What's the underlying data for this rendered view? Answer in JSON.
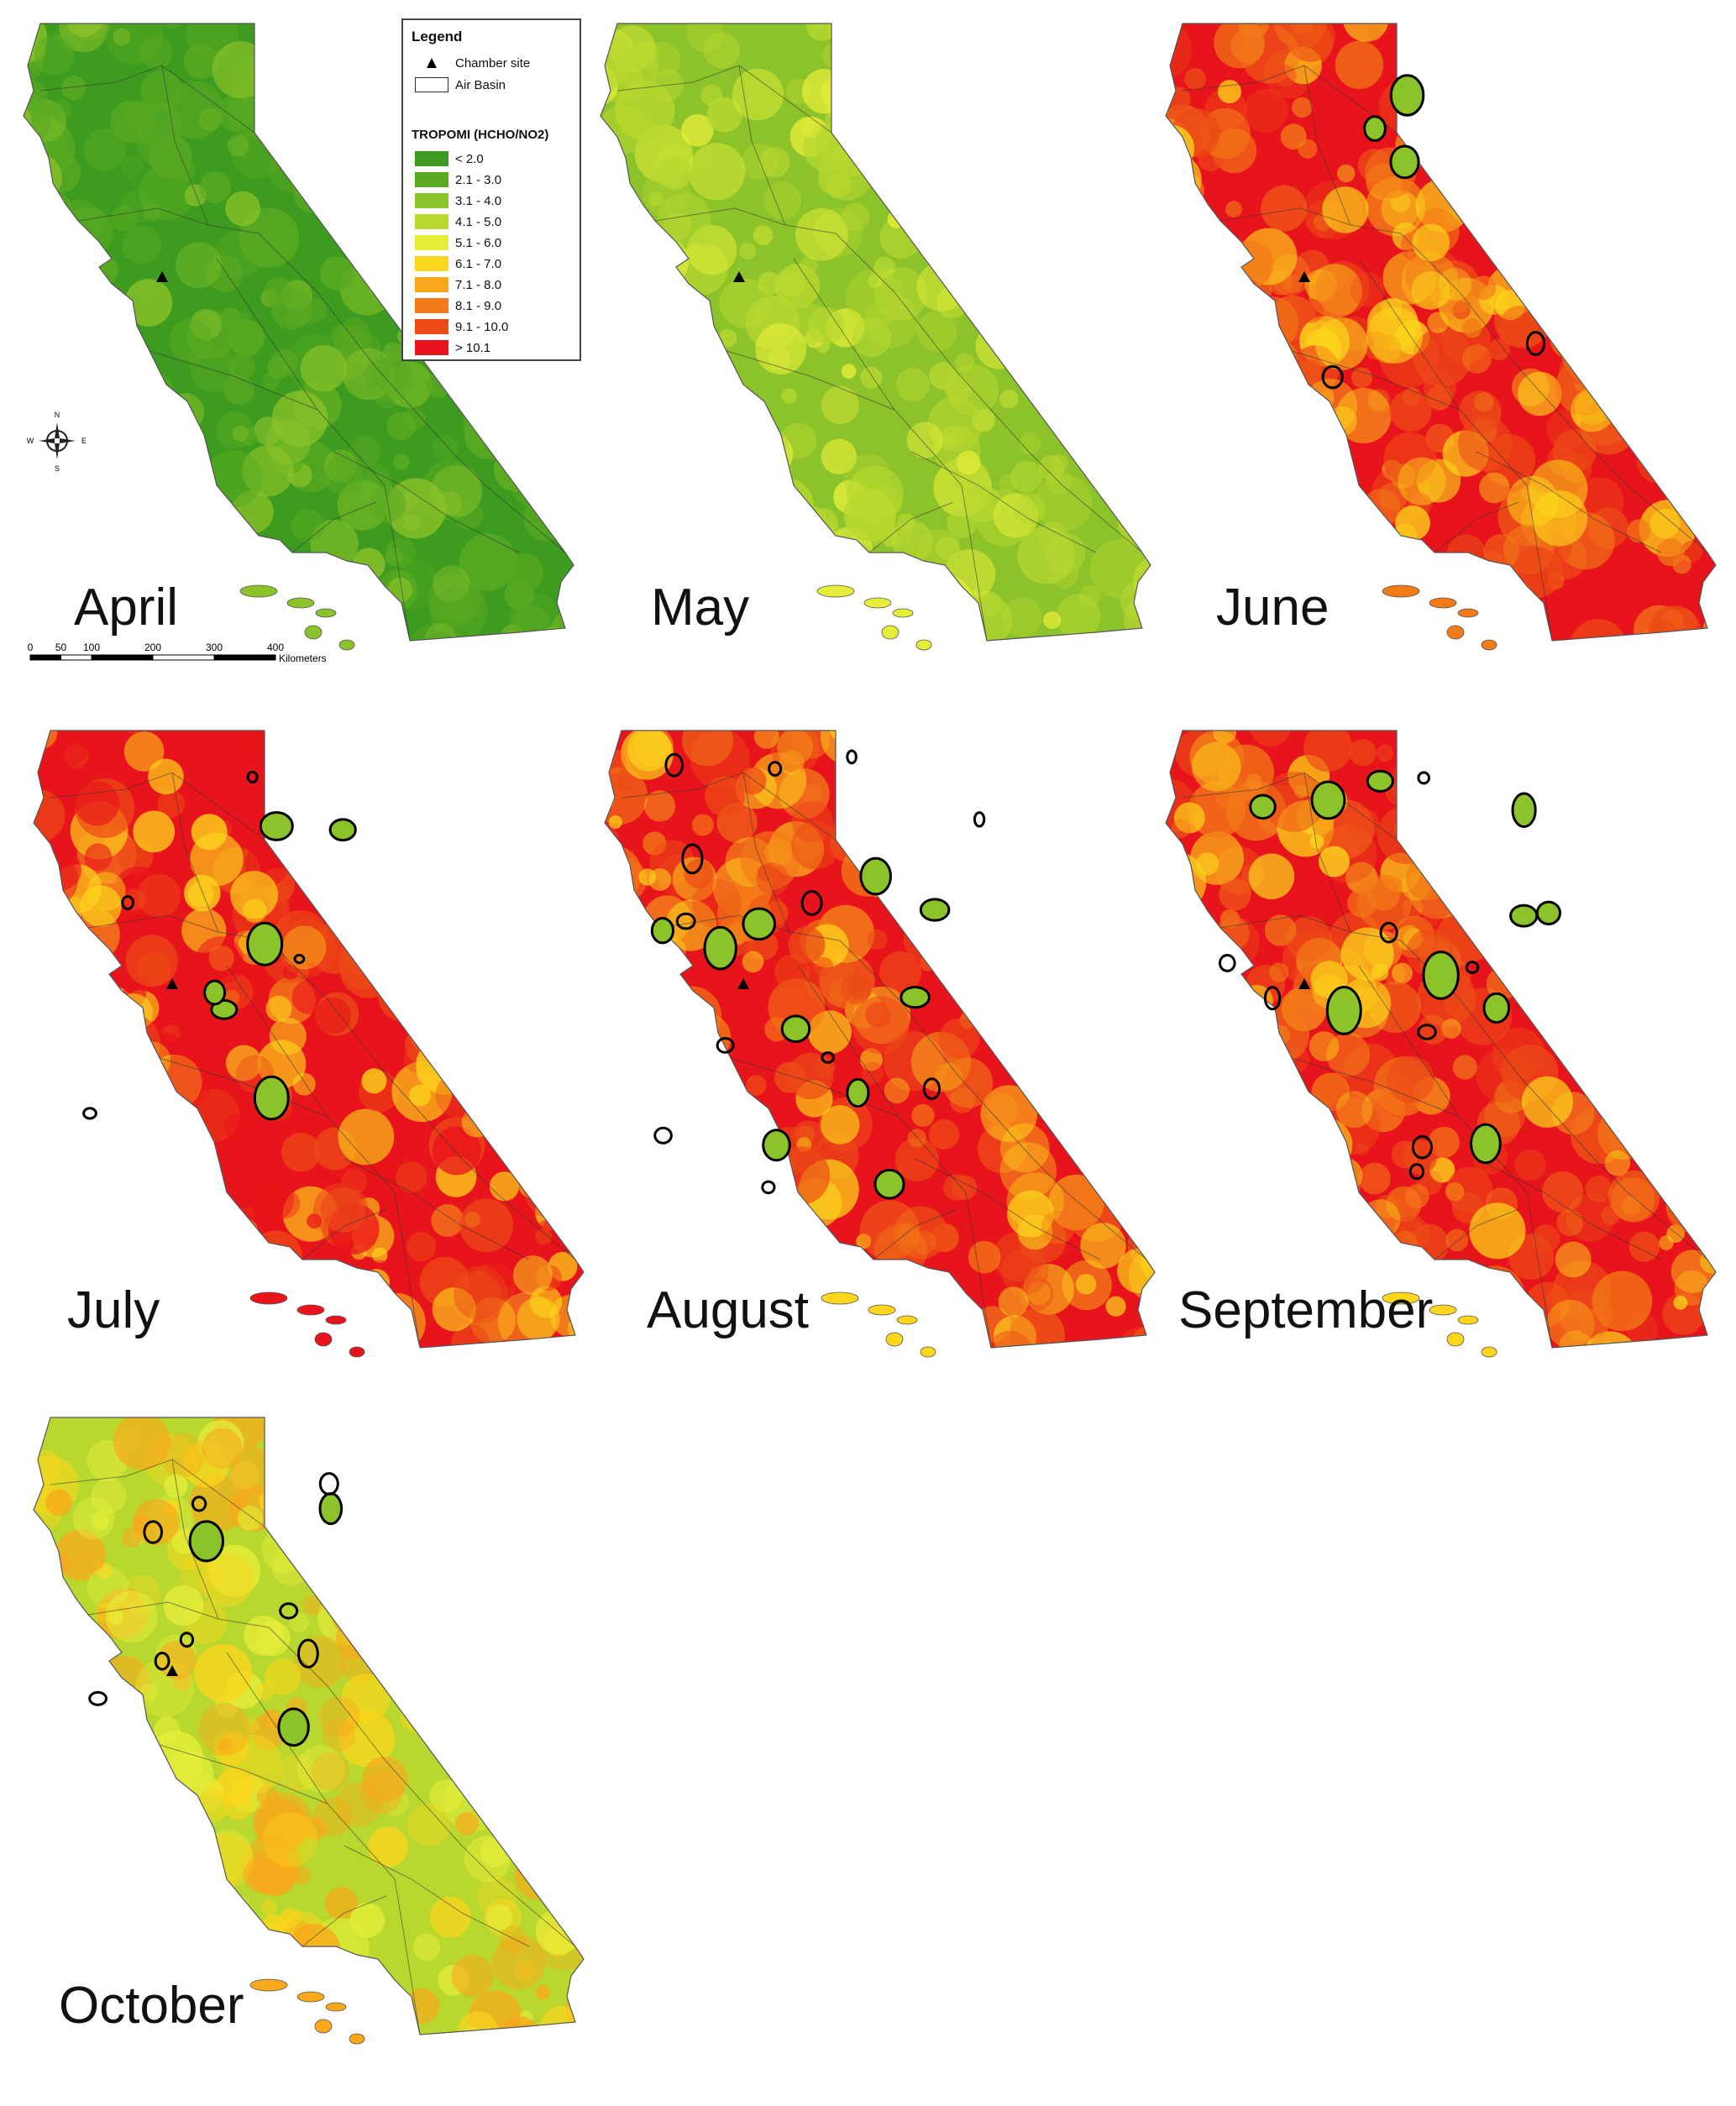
{
  "legend": {
    "title": "Legend",
    "chamber_site": "Chamber site",
    "air_basin": "Air Basin",
    "scale_title": "TROPOMI (HCHO/NO2)",
    "classes": [
      {
        "label": "< 2.0",
        "color": "#3d9b1f"
      },
      {
        "label": "2.1 - 3.0",
        "color": "#5aaa22"
      },
      {
        "label": "3.1 - 4.0",
        "color": "#8cc22a"
      },
      {
        "label": "4.1 - 5.0",
        "color": "#b8d830"
      },
      {
        "label": "5.1 - 6.0",
        "color": "#e6ee3a"
      },
      {
        "label": "6.1 - 7.0",
        "color": "#fcd61c"
      },
      {
        "label": "7.1 - 8.0",
        "color": "#f9a81b"
      },
      {
        "label": "8.1 - 9.0",
        "color": "#f27a17"
      },
      {
        "label": "9.1 - 10.0",
        "color": "#ec4a17"
      },
      {
        "label": "> 10.1",
        "color": "#e8141b"
      }
    ]
  },
  "compass": {
    "n": "N",
    "s": "S",
    "e": "E",
    "w": "W"
  },
  "scale": {
    "ticks": [
      "0",
      "50",
      "100",
      "200",
      "300",
      "400"
    ],
    "tick_km": [
      0,
      50,
      100,
      200,
      300,
      400
    ],
    "unit": "Kilometers"
  },
  "months": [
    {
      "label": "April",
      "palette": [
        "#3d9b1f",
        "#5aaa22",
        "#8cc22a",
        "#5aaa22"
      ],
      "fires": 0
    },
    {
      "label": "May",
      "palette": [
        "#8cc22a",
        "#b8d830",
        "#e6ee3a",
        "#b8d830"
      ],
      "fires": 0
    },
    {
      "label": "June",
      "palette": [
        "#e8141b",
        "#ec4a17",
        "#f27a17",
        "#fcd61c"
      ],
      "fires": 5
    },
    {
      "label": "July",
      "palette": [
        "#e8141b",
        "#ec4a17",
        "#e8141b",
        "#fcd61c"
      ],
      "fires": 10
    },
    {
      "label": "August",
      "palette": [
        "#e8141b",
        "#f27a17",
        "#fcd61c",
        "#ec4a17"
      ],
      "fires": 22
    },
    {
      "label": "September",
      "palette": [
        "#e8141b",
        "#ec4a17",
        "#fcd61c",
        "#f27a17"
      ],
      "fires": 18
    },
    {
      "label": "October",
      "palette": [
        "#b8d830",
        "#fcd61c",
        "#f9a81b",
        "#e6ee3a"
      ],
      "fires": 11
    }
  ]
}
